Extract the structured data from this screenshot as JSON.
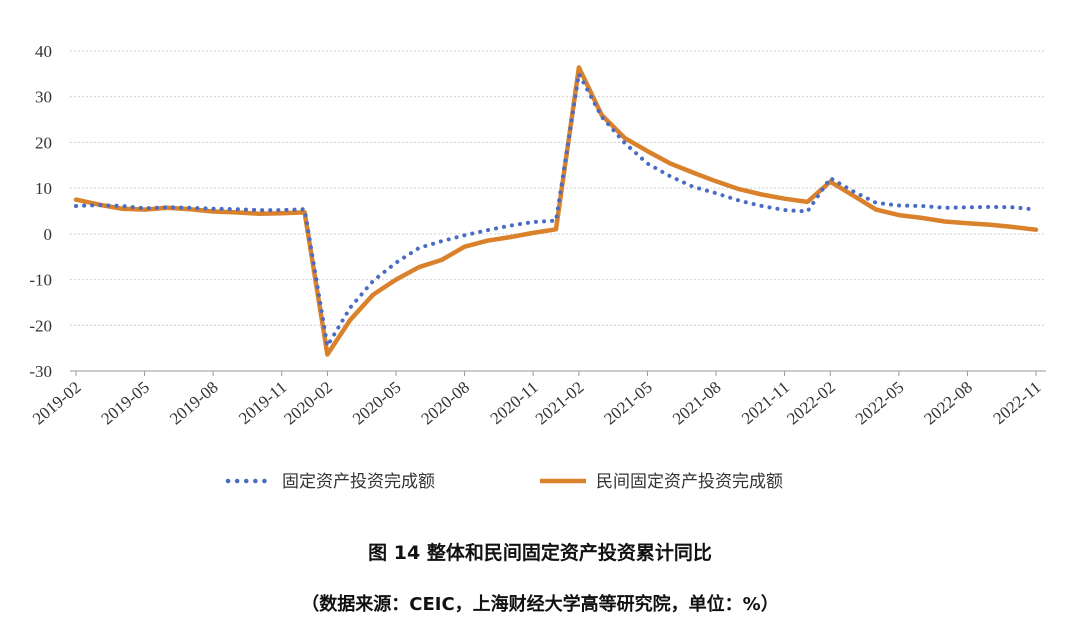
{
  "caption": {
    "title": "图 14  整体和民间固定资产投资累计同比",
    "source": "（数据来源：CEIC，上海财经大学高等研究院，单位：%）"
  },
  "colors": {
    "series_total": "#4a6cc4",
    "series_private": "#d9822b",
    "grid": "#cfcfcf",
    "axis": "#9a9a9a"
  },
  "chart_data": {
    "type": "line",
    "title": "",
    "xlabel": "",
    "ylabel": "",
    "ylim": [
      -30,
      40
    ],
    "yticks": [
      "40",
      "30",
      "20",
      "10",
      "0",
      "-10",
      "-20",
      "-30"
    ],
    "ytick_values": [
      40,
      30,
      20,
      10,
      0,
      -10,
      -20,
      -30
    ],
    "x": [
      "2019-02",
      "2019-03",
      "2019-04",
      "2019-05",
      "2019-06",
      "2019-07",
      "2019-08",
      "2019-09",
      "2019-10",
      "2019-11",
      "2019-12",
      "2020-02",
      "2020-03",
      "2020-04",
      "2020-05",
      "2020-06",
      "2020-07",
      "2020-08",
      "2020-09",
      "2020-10",
      "2020-11",
      "2020-12",
      "2021-02",
      "2021-03",
      "2021-04",
      "2021-05",
      "2021-06",
      "2021-07",
      "2021-08",
      "2021-09",
      "2021-10",
      "2021-11",
      "2021-12",
      "2022-02",
      "2022-03",
      "2022-04",
      "2022-05",
      "2022-06",
      "2022-07",
      "2022-08",
      "2022-09",
      "2022-10",
      "2022-11"
    ],
    "xticks": [
      "2019-02",
      "2019-05",
      "2019-08",
      "2019-11",
      "2020-02",
      "2020-05",
      "2020-08",
      "2020-11",
      "2021-02",
      "2021-05",
      "2021-08",
      "2021-11",
      "2022-02",
      "2022-05",
      "2022-08",
      "2022-11"
    ],
    "series": [
      {
        "name": "固定资产投资完成额",
        "style": "dotted",
        "values": [
          6.1,
          6.3,
          6.1,
          5.6,
          5.8,
          5.7,
          5.5,
          5.4,
          5.2,
          5.2,
          5.4,
          -24.5,
          -16.1,
          -10.3,
          -6.3,
          -3.1,
          -1.6,
          -0.3,
          0.8,
          1.8,
          2.6,
          2.9,
          35.0,
          25.6,
          19.9,
          15.4,
          12.6,
          10.3,
          8.9,
          7.3,
          6.1,
          5.2,
          4.9,
          12.2,
          9.3,
          6.8,
          6.2,
          6.1,
          5.7,
          5.8,
          5.9,
          5.8,
          5.3
        ]
      },
      {
        "name": "民间固定资产投资完成额",
        "style": "solid",
        "values": [
          7.5,
          6.4,
          5.5,
          5.3,
          5.7,
          5.4,
          4.9,
          4.7,
          4.4,
          4.5,
          4.7,
          -26.4,
          -18.8,
          -13.3,
          -10.0,
          -7.3,
          -5.7,
          -2.8,
          -1.5,
          -0.7,
          0.2,
          1.0,
          36.4,
          26.0,
          21.0,
          18.1,
          15.4,
          13.4,
          11.5,
          9.8,
          8.6,
          7.7,
          7.0,
          11.4,
          8.4,
          5.3,
          4.1,
          3.5,
          2.7,
          2.3,
          2.0,
          1.5,
          0.9
        ]
      }
    ],
    "legend_position": "bottom"
  }
}
